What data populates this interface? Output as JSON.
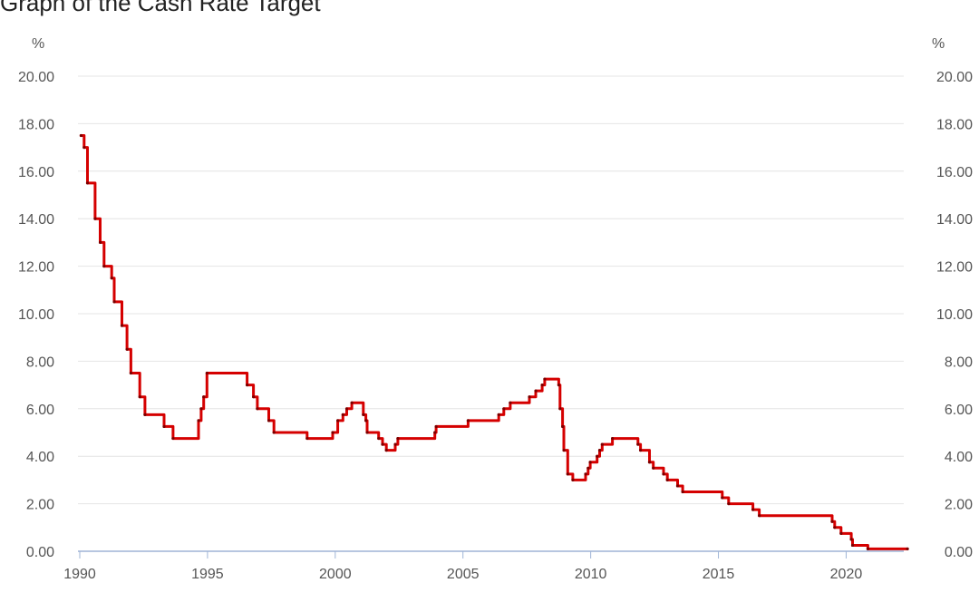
{
  "chart_data": {
    "type": "line",
    "title": "Graph of the Cash Rate Target",
    "unit_left": "%",
    "unit_right": "%",
    "xlim": [
      1990,
      2022.5
    ],
    "ylim": [
      0,
      20
    ],
    "xticks": [
      "1990",
      "1995",
      "2000",
      "2005",
      "2010",
      "2015",
      "2020"
    ],
    "yticks": [
      "0.00",
      "2.00",
      "4.00",
      "6.00",
      "8.00",
      "10.00",
      "12.00",
      "14.00",
      "16.00",
      "18.00",
      "20.00"
    ],
    "grid": true,
    "colors": {
      "series": "#d50000",
      "grid": "#e4e4e4",
      "axis": "#9fb4d6"
    },
    "series": [
      {
        "values": [
          [
            1990.05,
            17.5
          ],
          [
            1990.17,
            17.0
          ],
          [
            1990.3,
            15.5
          ],
          [
            1990.6,
            14.0
          ],
          [
            1990.8,
            13.0
          ],
          [
            1990.95,
            12.0
          ],
          [
            1991.25,
            11.5
          ],
          [
            1991.35,
            10.5
          ],
          [
            1991.65,
            9.5
          ],
          [
            1991.85,
            8.5
          ],
          [
            1992.0,
            7.5
          ],
          [
            1992.35,
            6.5
          ],
          [
            1992.55,
            5.75
          ],
          [
            1993.3,
            5.25
          ],
          [
            1993.65,
            4.75
          ],
          [
            1994.65,
            5.5
          ],
          [
            1994.75,
            6.0
          ],
          [
            1994.85,
            6.5
          ],
          [
            1994.98,
            7.5
          ],
          [
            1996.55,
            7.0
          ],
          [
            1996.8,
            6.5
          ],
          [
            1996.95,
            6.0
          ],
          [
            1997.4,
            5.5
          ],
          [
            1997.6,
            5.0
          ],
          [
            1998.9,
            4.75
          ],
          [
            1999.9,
            5.0
          ],
          [
            2000.1,
            5.5
          ],
          [
            2000.3,
            5.75
          ],
          [
            2000.45,
            6.0
          ],
          [
            2000.65,
            6.25
          ],
          [
            2001.1,
            5.75
          ],
          [
            2001.2,
            5.5
          ],
          [
            2001.25,
            5.0
          ],
          [
            2001.7,
            4.75
          ],
          [
            2001.85,
            4.5
          ],
          [
            2002.0,
            4.25
          ],
          [
            2002.35,
            4.5
          ],
          [
            2002.45,
            4.75
          ],
          [
            2003.9,
            5.0
          ],
          [
            2003.95,
            5.25
          ],
          [
            2005.2,
            5.5
          ],
          [
            2006.4,
            5.75
          ],
          [
            2006.6,
            6.0
          ],
          [
            2006.85,
            6.25
          ],
          [
            2007.6,
            6.5
          ],
          [
            2007.85,
            6.75
          ],
          [
            2008.1,
            7.0
          ],
          [
            2008.2,
            7.25
          ],
          [
            2008.75,
            7.0
          ],
          [
            2008.8,
            6.0
          ],
          [
            2008.9,
            5.25
          ],
          [
            2008.95,
            4.25
          ],
          [
            2009.1,
            3.25
          ],
          [
            2009.3,
            3.0
          ],
          [
            2009.8,
            3.25
          ],
          [
            2009.9,
            3.5
          ],
          [
            2009.98,
            3.75
          ],
          [
            2010.25,
            4.0
          ],
          [
            2010.35,
            4.25
          ],
          [
            2010.45,
            4.5
          ],
          [
            2010.85,
            4.75
          ],
          [
            2011.85,
            4.5
          ],
          [
            2011.95,
            4.25
          ],
          [
            2012.3,
            3.75
          ],
          [
            2012.45,
            3.5
          ],
          [
            2012.85,
            3.25
          ],
          [
            2013.0,
            3.0
          ],
          [
            2013.4,
            2.75
          ],
          [
            2013.6,
            2.5
          ],
          [
            2015.15,
            2.25
          ],
          [
            2015.4,
            2.0
          ],
          [
            2016.35,
            1.75
          ],
          [
            2016.6,
            1.5
          ],
          [
            2019.45,
            1.25
          ],
          [
            2019.55,
            1.0
          ],
          [
            2019.8,
            0.75
          ],
          [
            2020.2,
            0.5
          ],
          [
            2020.25,
            0.25
          ],
          [
            2020.85,
            0.1
          ],
          [
            2022.4,
            0.1
          ]
        ]
      }
    ]
  }
}
